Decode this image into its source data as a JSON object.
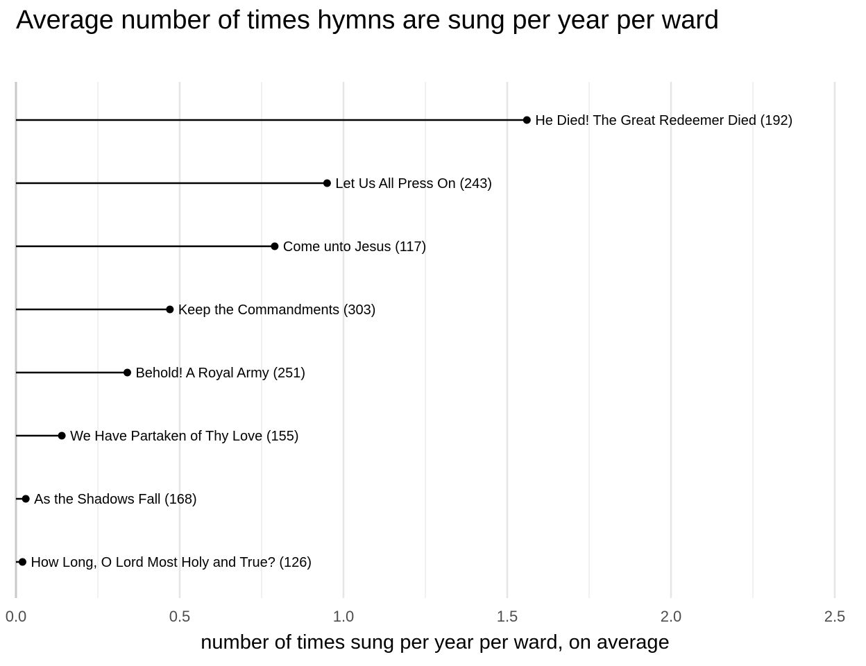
{
  "chart_data": {
    "type": "lollipop",
    "title": "Average number of times hymns are sung per year per ward",
    "xlabel": "number of times sung per year per ward, on average",
    "ylabel": "",
    "xlim": [
      0,
      2.5
    ],
    "x_ticks": [
      "0.0",
      "0.5",
      "1.0",
      "1.5",
      "2.0",
      "2.5"
    ],
    "grid": "vertical major and minor",
    "points": [
      {
        "label": "He Died! The Great Redeemer Died (192)",
        "value": 1.56
      },
      {
        "label": "Let Us All Press On (243)",
        "value": 0.95
      },
      {
        "label": "Come unto Jesus (117)",
        "value": 0.79
      },
      {
        "label": "Keep the Commandments (303)",
        "value": 0.47
      },
      {
        "label": "Behold! A Royal Army (251)",
        "value": 0.34
      },
      {
        "label": "We Have Partaken of Thy Love (155)",
        "value": 0.14
      },
      {
        "label": "As the Shadows Fall (168)",
        "value": 0.03
      },
      {
        "label": "How Long, O Lord Most Holy and True? (126)",
        "value": 0.02
      }
    ],
    "colors": {
      "line": "#000000",
      "grid": "#e5e5e5",
      "axis": "#c8c8c8"
    }
  }
}
